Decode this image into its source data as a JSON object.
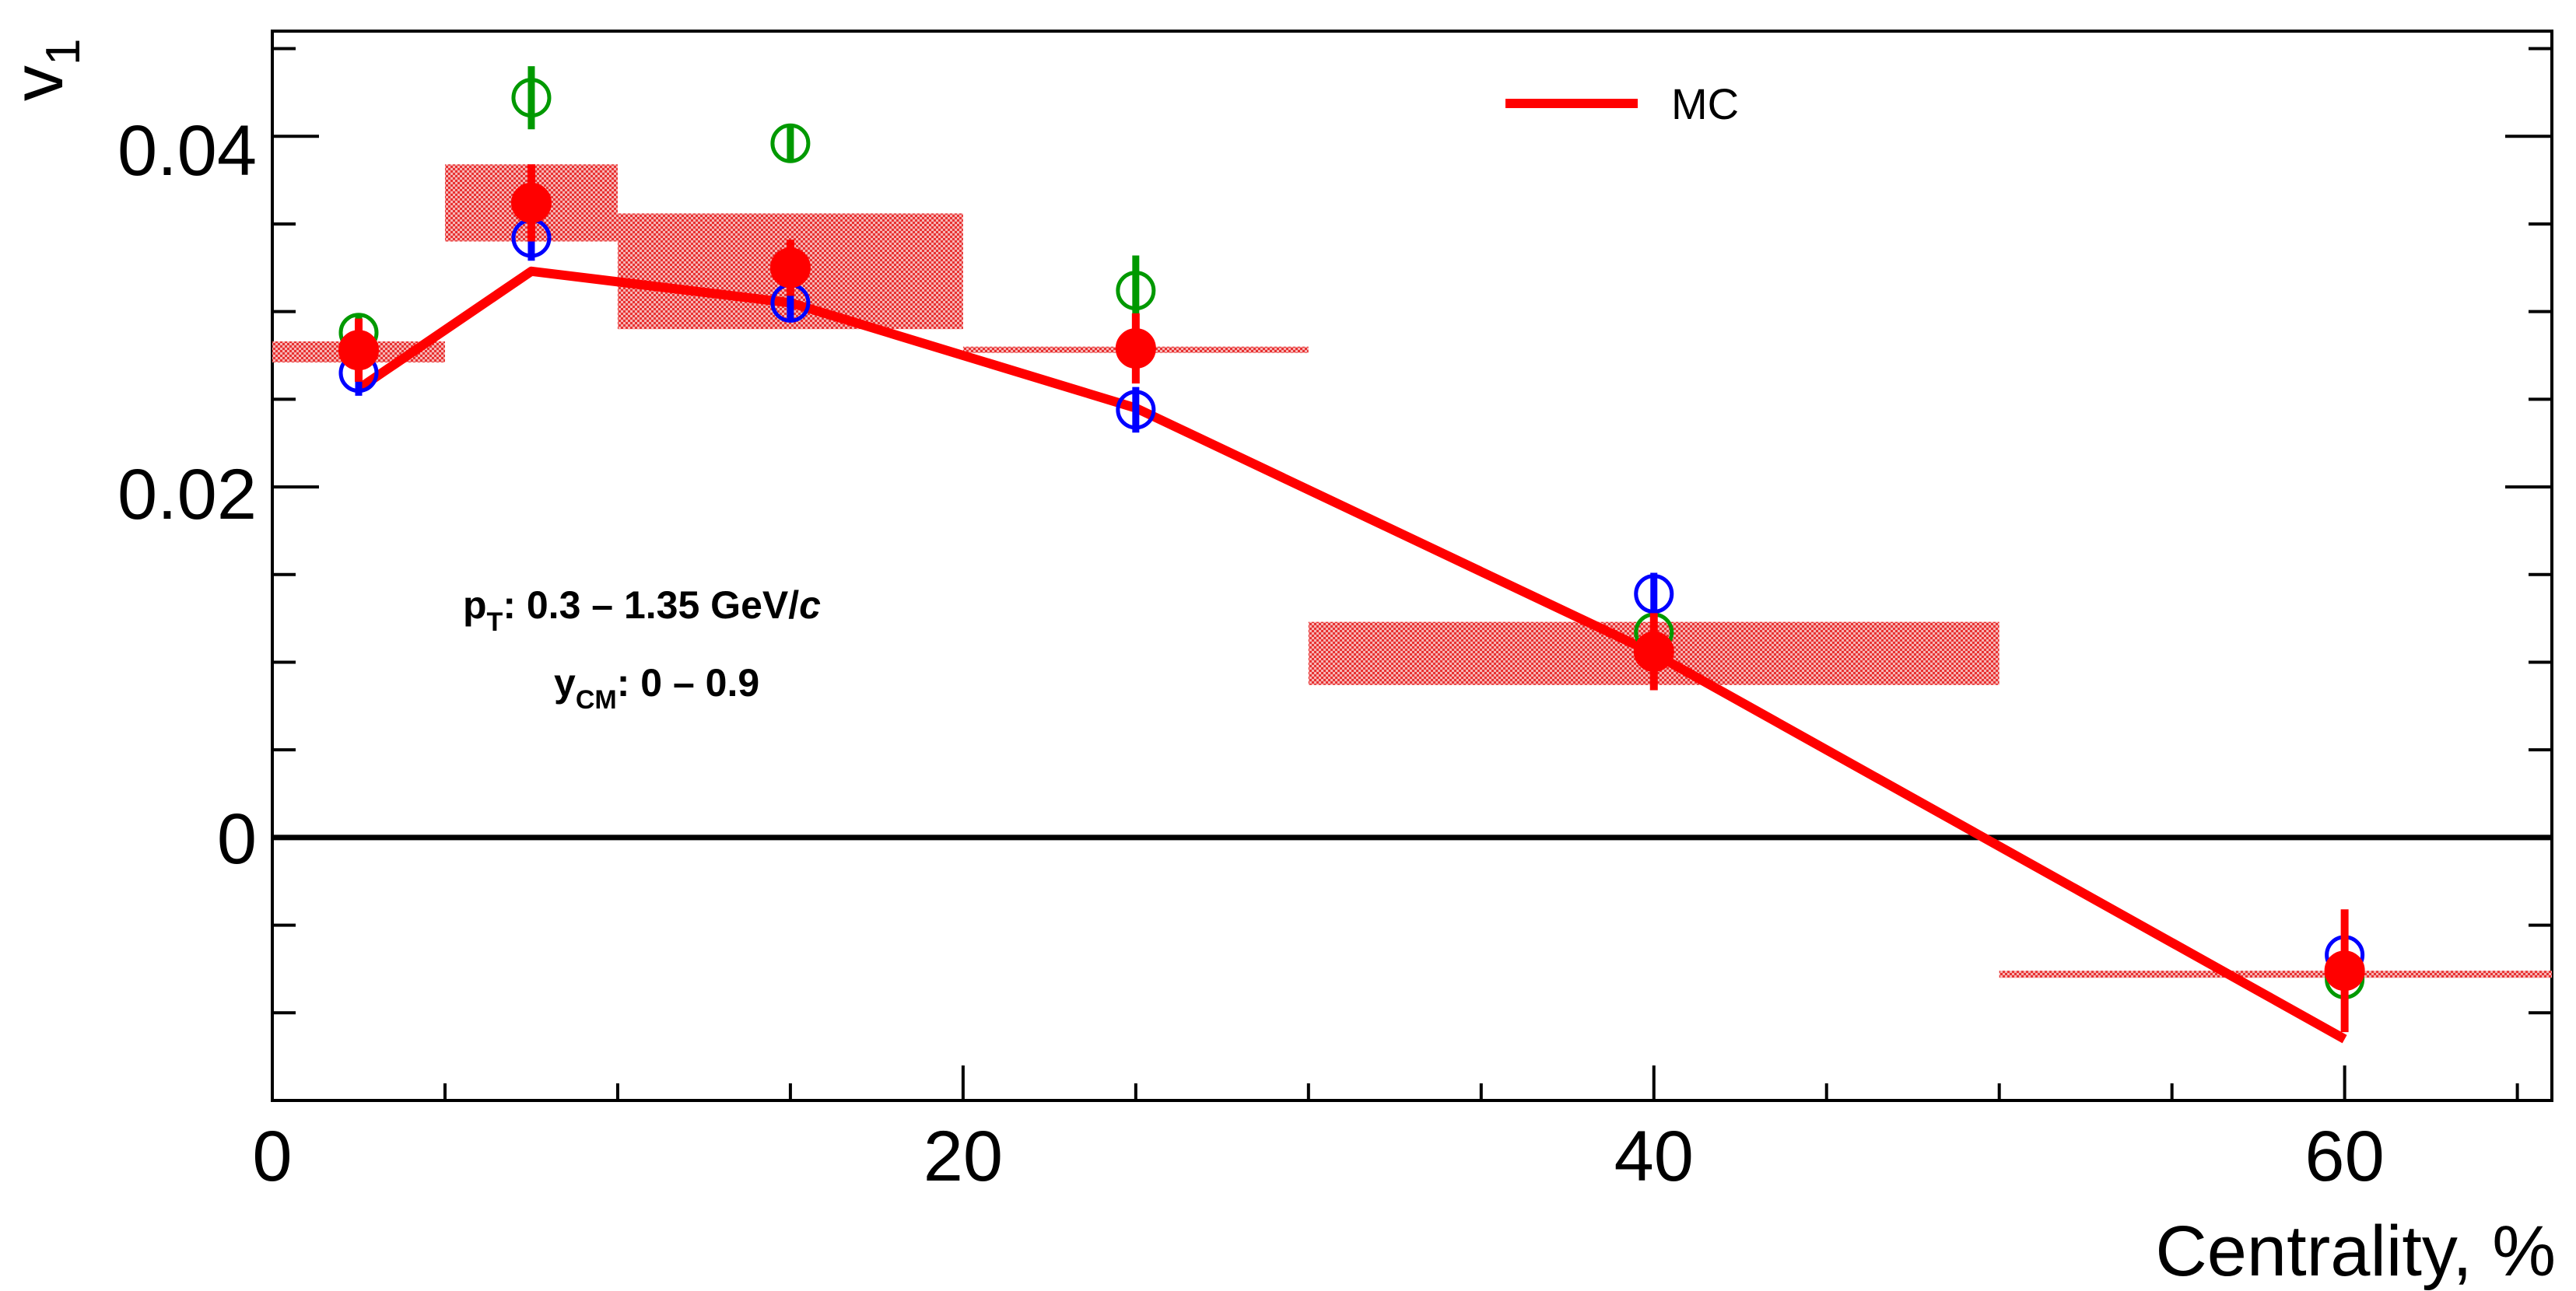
{
  "chart_data": {
    "type": "scatter",
    "title": "",
    "xlabel": "Centrality, %",
    "ylabel": "v",
    "ylabel_sub": "1",
    "xlim": [
      0,
      66
    ],
    "ylim": [
      -0.015,
      0.046
    ],
    "x_ticks": [
      0,
      20,
      40,
      60
    ],
    "x_tick_labels": [
      "0",
      "20",
      "40",
      "60"
    ],
    "y_ticks": [
      0,
      0.02,
      0.04
    ],
    "y_tick_labels": [
      "0",
      "0.02",
      "0.04"
    ],
    "zero_line": true,
    "grid": false,
    "legend": {
      "position": "top-center",
      "entries": [
        {
          "label": "MC",
          "color": "#ff0000"
        }
      ]
    },
    "annotations": {
      "line1_main": "p",
      "line1_sub": "T",
      "line1_rest": ": 0.3 – 1.35 GeV/",
      "line1_italic": "c",
      "line2_main": "y",
      "line2_sub": "CM",
      "line2_rest": ": 0 – 0.9"
    },
    "colors": {
      "red": "#ff0000",
      "blue": "#0000ff",
      "green": "#009900",
      "band": "#e83232"
    },
    "series": [
      {
        "name": "MC",
        "type": "line",
        "color": "#ff0000",
        "x": [
          2.5,
          7.5,
          15,
          25,
          40,
          60
        ],
        "y": [
          0.0256,
          0.0323,
          0.0305,
          0.0245,
          0.0105,
          -0.0115
        ]
      },
      {
        "name": "red filled",
        "type": "points",
        "color": "#ff0000",
        "x": [
          2.5,
          7.5,
          15,
          25,
          40,
          60
        ],
        "y": [
          0.0278,
          0.0362,
          0.0325,
          0.0279,
          0.0106,
          -0.0076
        ],
        "yerr": [
          0.0018,
          0.0022,
          0.0016,
          0.002,
          0.0022,
          0.0035
        ]
      },
      {
        "name": "blue open",
        "type": "points",
        "color": "#0000ff",
        "x": [
          2.5,
          7.5,
          15,
          25,
          40,
          60
        ],
        "y": [
          0.0265,
          0.0342,
          0.0305,
          0.0244,
          0.0139,
          -0.0067
        ],
        "yerr": [
          0.0013,
          0.0013,
          0.0011,
          0.0013,
          0.0012,
          0.001
        ]
      },
      {
        "name": "green open",
        "type": "points",
        "color": "#009900",
        "x": [
          2.5,
          7.5,
          15,
          25,
          40,
          60
        ],
        "y": [
          0.0288,
          0.0422,
          0.0396,
          0.0312,
          0.0117,
          -0.0081
        ],
        "yerr": [
          0.001,
          0.0018,
          0.001,
          0.002,
          0.001,
          0.001
        ]
      }
    ],
    "systematic_bands": [
      {
        "x0": 0,
        "x1": 5,
        "y0": 0.0271,
        "y1": 0.0283
      },
      {
        "x0": 5,
        "x1": 10,
        "y0": 0.034,
        "y1": 0.0384
      },
      {
        "x0": 10,
        "x1": 20,
        "y0": 0.029,
        "y1": 0.0356
      },
      {
        "x0": 20,
        "x1": 30,
        "y0": 0.0277,
        "y1": 0.028
      },
      {
        "x0": 30,
        "x1": 50,
        "y0": 0.0087,
        "y1": 0.0123
      },
      {
        "x0": 50,
        "x1": 66,
        "y0": -0.008,
        "y1": -0.0076
      }
    ]
  }
}
